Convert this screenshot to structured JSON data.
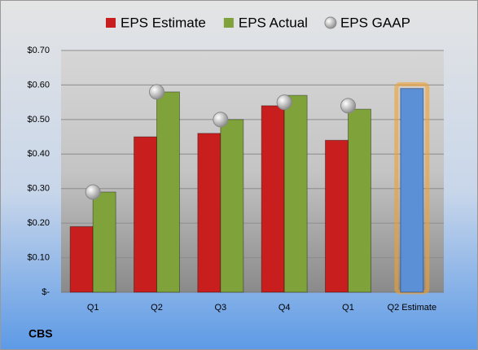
{
  "chart_data": {
    "type": "bar",
    "categories": [
      "Q1",
      "Q2",
      "Q3",
      "Q4",
      "Q1",
      "Q2 Estimate"
    ],
    "series": [
      {
        "name": "EPS Estimate",
        "color": "#c81e1e",
        "values": [
          0.19,
          0.45,
          0.46,
          0.54,
          0.44,
          null
        ]
      },
      {
        "name": "EPS Actual",
        "color": "#7fa33a",
        "values": [
          0.29,
          0.58,
          0.5,
          0.57,
          0.53,
          null
        ]
      },
      {
        "name": "EPS GAAP",
        "color": "#b8b8b8",
        "marker": "circle",
        "values": [
          0.29,
          0.58,
          0.5,
          0.55,
          0.54,
          null
        ]
      },
      {
        "color": "#5b8fd6",
        "values": [
          null,
          null,
          null,
          null,
          null,
          0.59
        ]
      }
    ],
    "ylim": [
      0,
      0.7
    ],
    "yticks": [
      {
        "value": 0,
        "label": "$-"
      },
      {
        "value": 0.1,
        "label": "$0.10"
      },
      {
        "value": 0.2,
        "label": "$0.20"
      },
      {
        "value": 0.3,
        "label": "$0.30"
      },
      {
        "value": 0.4,
        "label": "$0.40"
      },
      {
        "value": 0.5,
        "label": "$0.50"
      },
      {
        "value": 0.6,
        "label": "$0.60"
      },
      {
        "value": 0.7,
        "label": "$0.70"
      }
    ],
    "grid": true,
    "legend": "top",
    "footer": "CBS"
  }
}
